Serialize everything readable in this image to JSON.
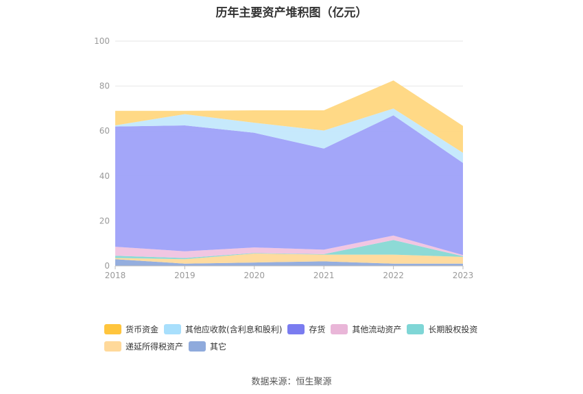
{
  "title": "历年主要资产堆积图（亿元）",
  "source": "数据来源：恒生聚源",
  "chart_data": {
    "type": "area",
    "stacked": true,
    "categories": [
      "2018",
      "2019",
      "2020",
      "2021",
      "2022",
      "2023"
    ],
    "ylim": [
      0,
      100
    ],
    "yticks": [
      0,
      20,
      40,
      60,
      80,
      100
    ],
    "grid": true,
    "legend_position": "bottom",
    "series": [
      {
        "name": "其它",
        "color": "#8FAADC",
        "values": [
          3.0,
          1.0,
          1.5,
          2.0,
          1.0,
          1.0
        ]
      },
      {
        "name": "递延所得税资产",
        "color": "#FFD99A",
        "values": [
          0.5,
          2.0,
          4.0,
          3.0,
          4.0,
          3.0
        ]
      },
      {
        "name": "长期股权投资",
        "color": "#87D8D4",
        "values": [
          1.0,
          0.5,
          0.2,
          0.2,
          6.5,
          0.3
        ]
      },
      {
        "name": "其他流动资产",
        "color": "#F0C3E0",
        "values": [
          4.0,
          3.0,
          2.5,
          2.0,
          2.0,
          0.5
        ]
      },
      {
        "name": "存货",
        "color": "#9EA1F9",
        "values": [
          53.5,
          56.0,
          51.0,
          45.0,
          53.5,
          41.0
        ]
      },
      {
        "name": "其他应收款(含利息和股利)",
        "color": "#C3E8FC",
        "values": [
          0.5,
          5.0,
          4.5,
          8.0,
          3.0,
          4.5
        ]
      },
      {
        "name": "货币资金",
        "color": "#FFD77F",
        "values": [
          6.5,
          1.5,
          5.5,
          9.0,
          12.5,
          12.0
        ]
      }
    ]
  },
  "legend": [
    {
      "name": "货币资金",
      "color": "#FFC53D"
    },
    {
      "name": "其他应收款(含利息和股利)",
      "color": "#A8DFFC"
    },
    {
      "name": "存货",
      "color": "#7A7CF0"
    },
    {
      "name": "其他流动资产",
      "color": "#E9B6D8"
    },
    {
      "name": "长期股权投资",
      "color": "#7FD6D6"
    },
    {
      "name": "递延所得税资产",
      "color": "#FFD99A"
    },
    {
      "name": "其它",
      "color": "#8FAADC"
    }
  ]
}
